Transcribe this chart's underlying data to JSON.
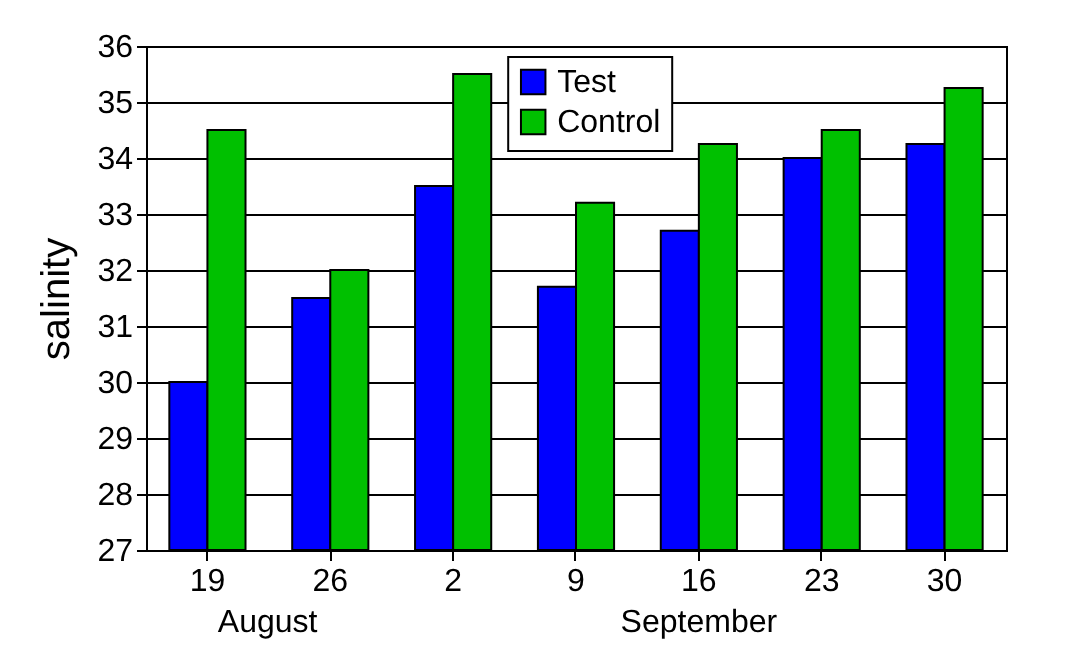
{
  "chart_data": {
    "type": "bar",
    "ylabel": "salinity",
    "categories": [
      "19",
      "26",
      "2",
      "9",
      "16",
      "23",
      "30"
    ],
    "series": [
      {
        "name": "Test",
        "color": "#0000ff",
        "values": [
          30.0,
          31.5,
          33.5,
          31.7,
          32.7,
          34.0,
          34.25
        ]
      },
      {
        "name": "Control",
        "color": "#00c000",
        "values": [
          34.5,
          32.0,
          35.5,
          33.2,
          34.25,
          34.5,
          35.25
        ]
      }
    ],
    "ylim": [
      27,
      36
    ],
    "yticks": [
      27,
      28,
      29,
      30,
      31,
      32,
      33,
      34,
      35,
      36
    ],
    "grid": "y",
    "legend": "top",
    "annotations": [
      "August",
      "September"
    ]
  }
}
